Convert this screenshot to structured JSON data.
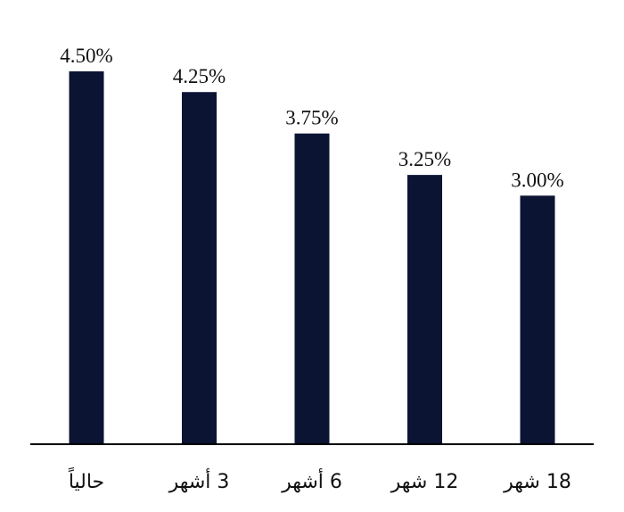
{
  "chart_data": {
    "type": "bar",
    "categories": [
      "حالياً",
      "3 أشهر",
      "6 أشهر",
      "12 شهر",
      "18 شهر"
    ],
    "values": [
      4.5,
      4.25,
      3.75,
      3.25,
      3.0
    ],
    "value_labels": [
      "4.50%",
      "4.25%",
      "3.75%",
      "3.25%",
      "3.00%"
    ],
    "ylim": [
      0,
      4.5
    ],
    "grid": false,
    "legend": "none",
    "bar_color": "#0b1433",
    "axis_color": "#000000"
  }
}
